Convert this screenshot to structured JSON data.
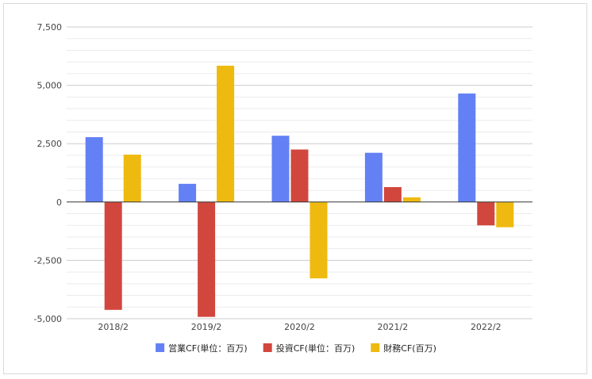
{
  "chart_data": {
    "type": "bar",
    "title": "",
    "xlabel": "",
    "ylabel": "",
    "categories": [
      "2018/2",
      "2019/2",
      "2020/2",
      "2021/2",
      "2022/2"
    ],
    "series": [
      {
        "name": "営業CF(単位：百万)",
        "color": "#6381f5",
        "values": [
          2780,
          780,
          2840,
          2110,
          4650
        ]
      },
      {
        "name": "投資CF(単位：百万)",
        "color": "#d2473d",
        "values": [
          -4620,
          -4920,
          2250,
          640,
          -1000
        ]
      },
      {
        "name": "財務CF(百万)",
        "color": "#eeba10",
        "values": [
          2030,
          5840,
          -3270,
          200,
          -1080
        ]
      }
    ],
    "ylim": [
      -5000,
      7500
    ],
    "yticks": [
      -5000,
      -2500,
      0,
      2500,
      5000,
      7500
    ],
    "ytick_labels": [
      "-5,000",
      "-2,500",
      "0",
      "2,500",
      "5,000",
      "7,500"
    ],
    "grid": true,
    "legend_position": "bottom"
  }
}
